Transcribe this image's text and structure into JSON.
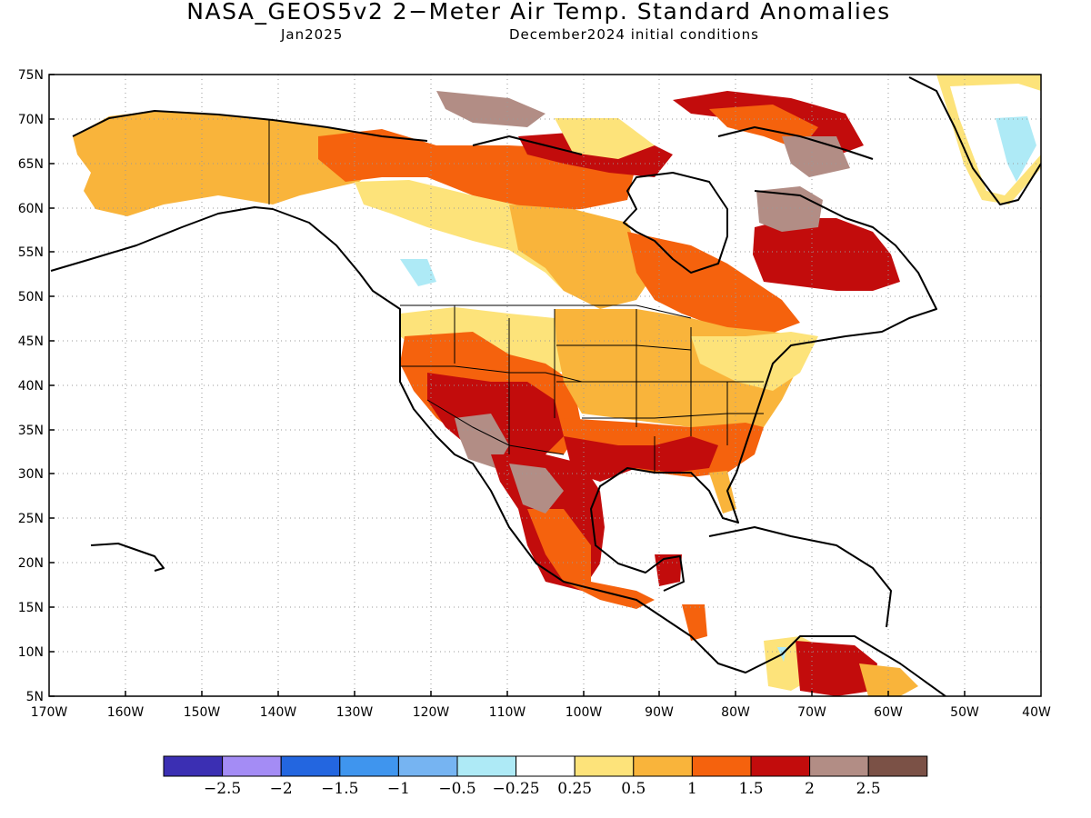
{
  "title": "NASA_GEOS5v2 2−Meter Air Temp. Standard Anomalies",
  "subtitle_left": "Jan2025",
  "subtitle_right": "December2024 initial conditions",
  "lat_labels": [
    "75N",
    "70N",
    "65N",
    "60N",
    "55N",
    "50N",
    "45N",
    "40N",
    "35N",
    "30N",
    "25N",
    "20N",
    "15N",
    "10N",
    "5N"
  ],
  "lon_labels": [
    "170W",
    "160W",
    "150W",
    "140W",
    "130W",
    "120W",
    "110W",
    "100W",
    "90W",
    "80W",
    "70W",
    "60W",
    "50W",
    "40W"
  ],
  "colorbar": {
    "colors": [
      "#3b2fb3",
      "#a48cf5",
      "#2366e0",
      "#3f95ee",
      "#76b4f2",
      "#aeeaf6",
      "#ffffff",
      "#fde37a",
      "#f9b43b",
      "#f5620d",
      "#c20c0c",
      "#b28d85",
      "#7b5146"
    ],
    "labels": [
      "−2.5",
      "−2",
      "−1.5",
      "−1",
      "−0.5",
      "−0.25",
      "0.25",
      "0.5",
      "1",
      "1.5",
      "2",
      "2.5"
    ]
  }
}
